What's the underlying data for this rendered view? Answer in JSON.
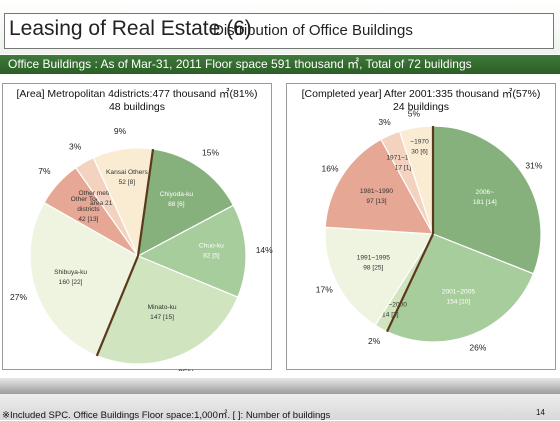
{
  "header": {
    "title": "Leasing of Real Estate (6)",
    "subtitle": "Distribution of Office Buildings"
  },
  "banner": {
    "text": "Office Buildings : As of Mar-31, 2011  Floor space 591 thousand ㎡, Total of 72 buildings"
  },
  "footer": {
    "note": "※Included SPC.  Office Buildings Floor space:1,000㎡.  [ ]: Number of buildings",
    "page": "14"
  },
  "colors": {
    "title_bar_bg": "#eef3ec",
    "banner_bg": "#2f6b2b",
    "leader_line": "#555555",
    "divider": "#5a3a1a"
  },
  "chart_data": [
    {
      "type": "pie",
      "title": "[Area] Metropolitan 4districts:477 thousand ㎡(81%)",
      "subtitle": "48 buildings",
      "start_angle_deg": 8,
      "separator_after": 3,
      "slices": [
        {
          "name": "Chiyoda-ku",
          "label": "Chiyoda-ku\n88 [6]",
          "value": 15,
          "pct_label": "15%",
          "color": "#86b07c",
          "label_dark": false
        },
        {
          "name": "Chuo-ku",
          "label": "Chuo-ku\n82 [5]",
          "value": 14,
          "pct_label": "14%",
          "color": "#a8cd9c",
          "label_dark": false
        },
        {
          "name": "Minato-ku",
          "label": "Minato-ku\n147 [15]",
          "value": 25,
          "pct_label": "25%",
          "color": "#cfe4bf",
          "label_dark": true
        },
        {
          "name": "Shibuya-ku",
          "label": "Shibuya-ku\n160 [22]",
          "value": 27,
          "pct_label": "27%",
          "color": "#eef4e0",
          "label_dark": true
        },
        {
          "name": "Other Tokyo districts",
          "label": "Other Tokyo\ndistricts\n42 [13]",
          "value": 7,
          "pct_label": "7%",
          "color": "#e6a794",
          "label_dark": true
        },
        {
          "name": "Other metropolitan area",
          "label": "Other metropolitan\narea 21 [3]",
          "value": 3,
          "pct_label": "3%",
          "color": "#f3d2c0",
          "label_dark": true
        },
        {
          "name": "Kansai Others",
          "label": "Kansai Others\n52 [8]",
          "value": 9,
          "pct_label": "9%",
          "color": "#f9ecd3",
          "label_dark": true
        }
      ]
    },
    {
      "type": "pie",
      "title": "[Completed year] After 2001:335 thousand ㎡(57%)",
      "subtitle": "24 buildings",
      "start_angle_deg": 0,
      "separator_after": 2,
      "slices": [
        {
          "name": "2006~",
          "label": "2006~\n181 [14]",
          "value": 31,
          "pct_label": "31%",
          "color": "#86b07c",
          "label_dark": false
        },
        {
          "name": "2001~2005",
          "label": "2001~2005\n154 [10]",
          "value": 26,
          "pct_label": "26%",
          "color": "#a8cd9c",
          "label_dark": false
        },
        {
          "name": "1996~2000",
          "label": "1996~2000\n14 [3]",
          "value": 2,
          "pct_label": "2%",
          "color": "#cfe4bf",
          "label_dark": true
        },
        {
          "name": "1991~1995",
          "label": "1991~1995\n98 [25]",
          "value": 17,
          "pct_label": "17%",
          "color": "#eef4e0",
          "label_dark": true
        },
        {
          "name": "1981~1990",
          "label": "1981~1990\n97 [13]",
          "value": 16,
          "pct_label": "16%",
          "color": "#e6a794",
          "label_dark": true
        },
        {
          "name": "1971~1980",
          "label": "1971~1980\n17 [1]",
          "value": 3,
          "pct_label": "3%",
          "color": "#f3d2c0",
          "label_dark": true
        },
        {
          "name": "~1970",
          "label": "~1970\n30 [6]",
          "value": 5,
          "pct_label": "5%",
          "color": "#f9ecd3",
          "label_dark": true
        }
      ]
    }
  ]
}
